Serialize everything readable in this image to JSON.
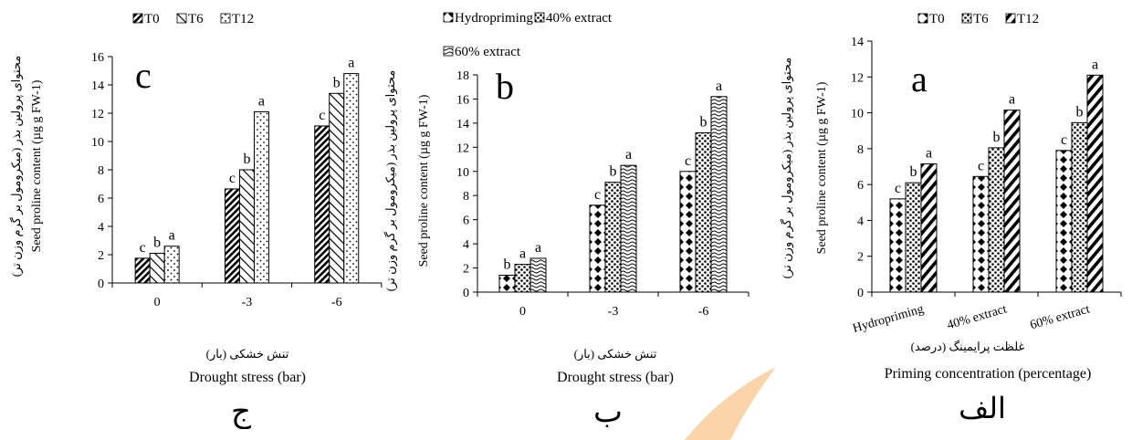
{
  "chart_data": [
    {
      "id": "c",
      "type": "bar",
      "panel_label": "c",
      "bottom_letter": "ج",
      "categories": [
        "0",
        "-3",
        "-6"
      ],
      "series": [
        {
          "name": "T0",
          "pattern": "diag-dense",
          "values": [
            1.75,
            6.65,
            11.1
          ],
          "letters": [
            "c",
            "c",
            "c"
          ]
        },
        {
          "name": "T6",
          "pattern": "diag-sparse",
          "values": [
            2.1,
            8.0,
            13.4
          ],
          "letters": [
            "b",
            "b",
            "b"
          ]
        },
        {
          "name": "T12",
          "pattern": "dots-sparse",
          "values": [
            2.6,
            12.1,
            14.8
          ],
          "letters": [
            "a",
            "a",
            "a"
          ]
        }
      ],
      "ylabel_fa": "محتوای پرولین بذر (میکرومول بر گرم وزن تر)",
      "ylabel_en": "Seed proline content (µg g FW-1)",
      "xlabel_fa": "تنش خشکی (بار)",
      "xlabel_en": "Drought stress (bar)",
      "ylim": [
        0,
        16
      ],
      "yticks": [
        "0",
        "2",
        "4",
        "6",
        "8",
        "10",
        "12",
        "14",
        "16"
      ]
    },
    {
      "id": "b",
      "type": "bar",
      "panel_label": "b",
      "bottom_letter": "ب",
      "categories": [
        "0",
        "-3",
        "-6"
      ],
      "series": [
        {
          "name": "Hydropriming",
          "pattern": "diamonds",
          "values": [
            1.4,
            7.2,
            10.0
          ],
          "letters": [
            "b",
            "c",
            "c"
          ]
        },
        {
          "name": "40% extract",
          "pattern": "dots-dense",
          "values": [
            2.3,
            9.1,
            13.2
          ],
          "letters": [
            "a",
            "b",
            "b"
          ]
        },
        {
          "name": "60% extract",
          "pattern": "waves",
          "values": [
            2.8,
            10.5,
            16.2
          ],
          "letters": [
            "a",
            "a",
            "a"
          ]
        }
      ],
      "ylabel_fa": "محتوای پرولین بذر (میکرومول بر گرم وزن تر)",
      "ylabel_en": "Seed proline content (µg g FW-1)",
      "xlabel_fa": "تنش خشکی (بار)",
      "xlabel_en": "Drought stress (bar)",
      "ylim": [
        0,
        18
      ],
      "yticks": [
        "0",
        "2",
        "4",
        "6",
        "8",
        "10",
        "12",
        "14",
        "16",
        "18"
      ]
    },
    {
      "id": "a",
      "type": "bar",
      "panel_label": "a",
      "bottom_letter": "الف",
      "categories": [
        "Hydropriming",
        "40% extract",
        "60% extract"
      ],
      "series": [
        {
          "name": "T0",
          "pattern": "diamonds",
          "values": [
            5.2,
            6.45,
            7.9
          ],
          "letters": [
            "c",
            "c",
            "c"
          ]
        },
        {
          "name": "T6",
          "pattern": "dots-dense",
          "values": [
            6.1,
            8.05,
            9.45
          ],
          "letters": [
            "b",
            "b",
            "b"
          ]
        },
        {
          "name": "T12",
          "pattern": "diag-bold",
          "values": [
            7.15,
            10.15,
            12.1
          ],
          "letters": [
            "a",
            "a",
            "a"
          ]
        }
      ],
      "ylabel_fa": "محتوای پرولین بذر (میکرومول بر گرم وزن تر)",
      "ylabel_en": "Seed proline content (µg g FW-1)",
      "xlabel_fa": "غلظت پرایمینگ (درصد)",
      "xlabel_en": "Priming concentration (percentage)",
      "ylim": [
        0,
        14
      ],
      "yticks": [
        "0",
        "2",
        "4",
        "6",
        "8",
        "10",
        "12",
        "14"
      ]
    }
  ],
  "colors": {
    "ink": "#000000",
    "background": "#ffffff",
    "watermark": "#f7a040"
  }
}
